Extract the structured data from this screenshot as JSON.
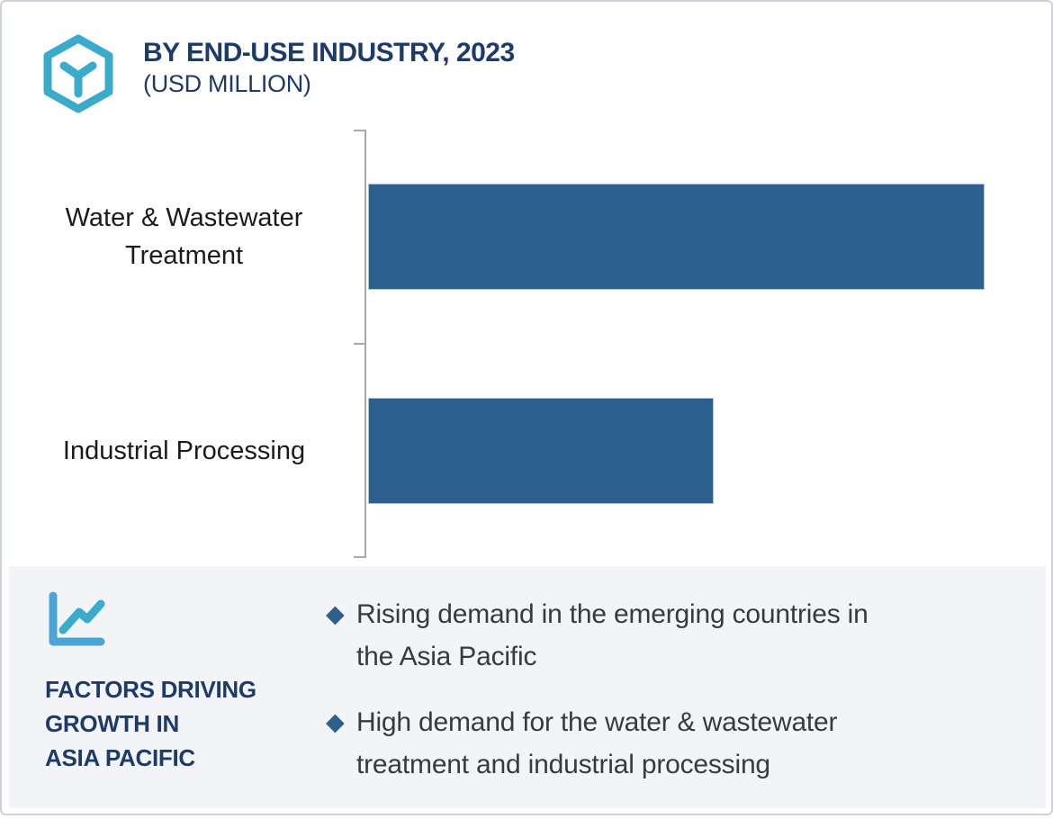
{
  "header": {
    "title": "BY END-USE INDUSTRY, 2023",
    "subtitle": "(USD MILLION)",
    "icon": "hexagon-cube-icon"
  },
  "chart_data": {
    "type": "bar",
    "orientation": "horizontal",
    "title": "BY END-USE INDUSTRY, 2023",
    "subtitle": "(USD MILLION)",
    "unit": "USD Million",
    "categories": [
      "Water & Wastewater Treatment",
      "Industrial Processing"
    ],
    "series": [
      {
        "name": "2023",
        "values_relative_pct": [
          100,
          56
        ]
      }
    ],
    "values_note": "no numeric axis or data labels shown; values are relative bar lengths (% of longest bar)",
    "value_axis_labels": "none",
    "legend": "none",
    "grid": false,
    "bar_color": "#2d5f8e"
  },
  "factors": {
    "icon": "line-chart-icon",
    "heading": "FACTORS DRIVING\nGROWTH IN\nASIA PACIFIC",
    "bullets": [
      {
        "text": "Rising demand in the emerging countries in\nthe Asia Pacific"
      },
      {
        "text": "High demand for the water & wastewater\ntreatment and industrial processing"
      }
    ]
  },
  "colors": {
    "bar": "#2d5f8e",
    "teal": "#3babcb",
    "icon_axis_blue": "#4aa5d6",
    "navy": "#1e3a68",
    "panel_bg": "#f2f4f8",
    "axis_gray": "#a9a9a9",
    "bullet_diamond": "#2d5f8e"
  }
}
